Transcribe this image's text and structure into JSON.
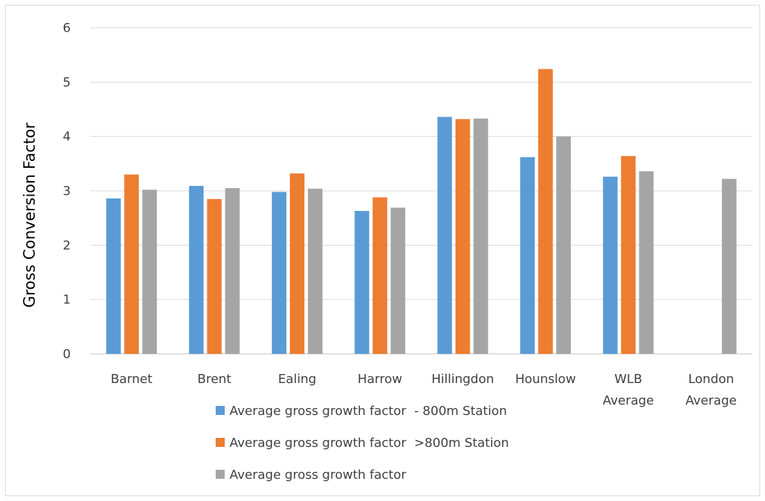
{
  "chart_data": {
    "type": "bar",
    "title": "",
    "xlabel": "",
    "ylabel": "Gross Conversion Factor",
    "ylim": [
      0,
      6
    ],
    "yticks": [
      0,
      1,
      2,
      3,
      4,
      5,
      6
    ],
    "grid": true,
    "legend_position": "bottom",
    "categories": [
      [
        "Barnet"
      ],
      [
        "Brent"
      ],
      [
        "Ealing"
      ],
      [
        "Harrow"
      ],
      [
        "Hillingdon"
      ],
      [
        "Hounslow"
      ],
      [
        "WLB",
        "Average"
      ],
      [
        "London",
        "Average"
      ]
    ],
    "series": [
      {
        "name": "Average gross growth factor  - 800m Station",
        "color": "#5b9bd5",
        "values": [
          2.86,
          3.09,
          2.98,
          2.63,
          4.36,
          3.62,
          3.26,
          null
        ]
      },
      {
        "name": "Average gross growth factor  >800m Station",
        "color": "#ed7d31",
        "values": [
          3.3,
          2.85,
          3.32,
          2.88,
          4.32,
          5.24,
          3.64,
          null
        ]
      },
      {
        "name": "Average gross growth factor",
        "color": "#a5a5a5",
        "values": [
          3.02,
          3.05,
          3.04,
          2.69,
          4.33,
          4.0,
          3.36,
          3.22
        ]
      }
    ]
  }
}
